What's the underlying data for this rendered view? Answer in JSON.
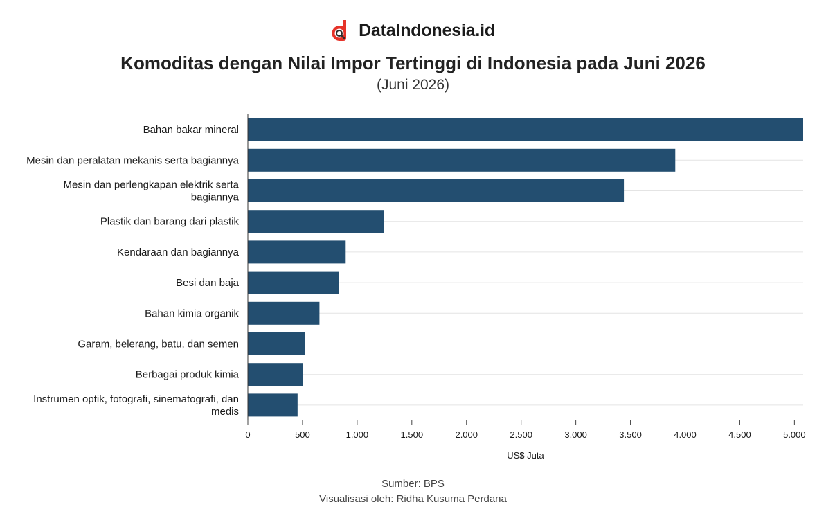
{
  "brand": {
    "name": "DataIndonesia.id",
    "logo_icon": "dataindonesia-logo-icon",
    "logo_color": "#e63329"
  },
  "header": {
    "title": "Komoditas dengan Nilai Impor Tertinggi di Indonesia pada Juni 2026",
    "subtitle": "(Juni 2026)"
  },
  "chart_data": {
    "type": "bar",
    "orientation": "horizontal",
    "categories": [
      "Bahan bakar mineral",
      "Mesin dan peralatan mekanis serta bagiannya",
      "Mesin dan perlengkapan elektrik serta bagiannya",
      "Plastik dan barang dari plastik",
      "Kendaraan dan bagiannya",
      "Besi dan baja",
      "Bahan kimia organik",
      "Garam, belerang, batu, dan semen",
      "Berbagai produk kimia",
      "Instrumen optik, fotografi, sinematografi, dan medis"
    ],
    "category_lines": [
      [
        "Bahan bakar mineral"
      ],
      [
        "Mesin dan peralatan mekanis serta bagiannya"
      ],
      [
        "Mesin dan perlengkapan elektrik serta",
        "bagiannya"
      ],
      [
        "Plastik dan barang dari plastik"
      ],
      [
        "Kendaraan dan bagiannya"
      ],
      [
        "Besi dan baja"
      ],
      [
        "Bahan kimia organik"
      ],
      [
        "Garam, belerang, batu, dan semen"
      ],
      [
        "Berbagai produk kimia"
      ],
      [
        "Instrumen optik, fotografi, sinematografi, dan",
        "medis"
      ]
    ],
    "values": [
      5080,
      3910,
      3440,
      1245,
      895,
      830,
      655,
      520,
      505,
      455
    ],
    "xlabel": "US$ Juta",
    "ylabel": "",
    "xlim": [
      0,
      5080
    ],
    "xticks": [
      0,
      500,
      1000,
      1500,
      2000,
      2500,
      3000,
      3500,
      4000,
      4500,
      5000
    ],
    "xtick_labels": [
      "0",
      "500",
      "1.000",
      "1.500",
      "2.000",
      "2.500",
      "3.000",
      "3.500",
      "4.000",
      "4.500",
      "5.000"
    ],
    "grid": "horizontal",
    "bar_color": "#234e70",
    "grid_color": "#e4e4e4"
  },
  "footer": {
    "source": "Sumber: BPS",
    "credit": "Visualisasi oleh: Ridha Kusuma Perdana"
  }
}
